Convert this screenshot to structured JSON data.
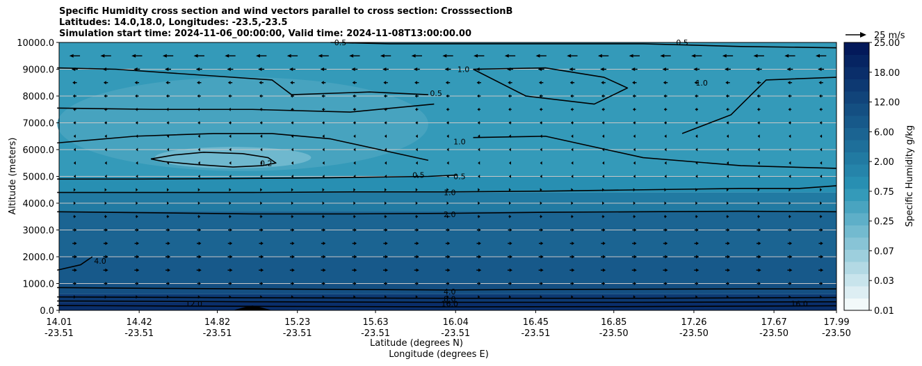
{
  "header": {
    "line1": "Specific Humidity cross section and wind vectors parallel to cross section: CrosssectionB",
    "line2": "Latitudes: 14.0,18.0, Longitudes: -23.5,-23.5",
    "line3": "Simulation start time: 2024-11-06_00:00:00, Valid time: 2024-11-08T13:00:00.00"
  },
  "quiver_key": {
    "label": "25 m/s"
  },
  "chart_data": {
    "type": "heatmap",
    "ylabel": "Altitude (meters)",
    "xlabel_lat": "Latitude (degrees N)",
    "xlabel_lon": "Longitude (degrees E)",
    "ylim": [
      0,
      10000
    ],
    "grid": "horizontal",
    "y_ticks": [
      "0.0",
      "1000.0",
      "2000.0",
      "3000.0",
      "4000.0",
      "5000.0",
      "6000.0",
      "7000.0",
      "8000.0",
      "9000.0",
      "10000.0"
    ],
    "x_ticks": [
      {
        "lat": "14.01",
        "lon": "-23.51"
      },
      {
        "lat": "14.42",
        "lon": "-23.51"
      },
      {
        "lat": "14.82",
        "lon": "-23.51"
      },
      {
        "lat": "15.23",
        "lon": "-23.51"
      },
      {
        "lat": "15.63",
        "lon": "-23.51"
      },
      {
        "lat": "16.04",
        "lon": "-23.51"
      },
      {
        "lat": "16.45",
        "lon": "-23.51"
      },
      {
        "lat": "16.85",
        "lon": "-23.50"
      },
      {
        "lat": "17.26",
        "lon": "-23.50"
      },
      {
        "lat": "17.67",
        "lon": "-23.50"
      },
      {
        "lat": "17.99",
        "lon": "-23.50"
      }
    ],
    "colorbar": {
      "label": "Specific Humidity g/kg",
      "levels": [
        0.01,
        0.02,
        0.03,
        0.05,
        0.07,
        0.1,
        0.15,
        0.25,
        0.35,
        0.5,
        0.75,
        1.0,
        1.5,
        2.0,
        3.0,
        4.0,
        6.0,
        8.0,
        12.0,
        15.0,
        18.0,
        21.0,
        25.0
      ],
      "tick_labels": [
        "0.01",
        "0.03",
        "0.07",
        "0.25",
        "0.75",
        "2.00",
        "6.00",
        "12.00",
        "18.00",
        "25.00"
      ],
      "color_low": "#f2f9fa",
      "color_mid": "#2a95b6",
      "color_high": "#03195a"
    },
    "humidity_bands": [
      {
        "from_m": 0,
        "to_m": 300,
        "value_gkg": 17.0
      },
      {
        "from_m": 300,
        "to_m": 600,
        "value_gkg": 12.0
      },
      {
        "from_m": 600,
        "to_m": 1000,
        "value_gkg": 7.0
      },
      {
        "from_m": 1000,
        "to_m": 2000,
        "value_gkg": 5.0
      },
      {
        "from_m": 2000,
        "to_m": 3700,
        "value_gkg": 3.0
      },
      {
        "from_m": 3700,
        "to_m": 4400,
        "value_gkg": 1.5
      },
      {
        "from_m": 4400,
        "to_m": 5000,
        "value_gkg": 0.8
      },
      {
        "from_m": 5000,
        "to_m": 10000,
        "value_gkg": 0.6
      }
    ],
    "dry_patches": [
      {
        "lat_from": 14.0,
        "lat_to": 15.9,
        "alt_from_m": 5200,
        "alt_to_m": 8700,
        "value_gkg": 0.35
      },
      {
        "lat_from": 14.5,
        "lat_to": 15.3,
        "alt_from_m": 5300,
        "alt_to_m": 6100,
        "value_gkg": 0.2
      }
    ],
    "contours": [
      {
        "level": "0.2",
        "lat": [
          14.48,
          14.6,
          14.75,
          14.95,
          15.08,
          15.12,
          15.05,
          14.9,
          14.7,
          14.55,
          14.48
        ],
        "alt_m": [
          5650,
          5800,
          5900,
          5850,
          5700,
          5500,
          5400,
          5350,
          5450,
          5550,
          5650
        ]
      },
      {
        "level": "0.5",
        "lat": [
          14.0,
          14.4,
          14.9,
          15.4,
          15.9,
          16.05
        ],
        "alt_m": [
          4900,
          4900,
          4920,
          4950,
          5000,
          5050
        ]
      },
      {
        "level": "0.5",
        "lat": [
          14.0,
          14.4,
          14.8,
          15.1,
          15.4,
          15.9
        ],
        "alt_m": [
          6250,
          6500,
          6600,
          6600,
          6400,
          5600
        ]
      },
      {
        "level": "0.5",
        "lat": [
          14.0,
          14.5,
          15.0,
          15.5,
          15.93
        ],
        "alt_m": [
          7550,
          7500,
          7500,
          7400,
          7700
        ]
      },
      {
        "level": "0.5",
        "lat": [
          14.0,
          14.3,
          14.8,
          15.1,
          15.2,
          15.6,
          15.9
        ],
        "alt_m": [
          9050,
          9000,
          8750,
          8600,
          8050,
          8150,
          8050
        ]
      },
      {
        "level": "0.5",
        "lat": [
          15.4,
          15.7,
          16.0,
          16.5,
          17.0,
          17.5,
          17.99
        ],
        "alt_m": [
          10000,
          9950,
          9950,
          9950,
          9950,
          9850,
          9800
        ]
      },
      {
        "level": "1.0",
        "lat": [
          14.0,
          14.5,
          15.0,
          15.5,
          16.0,
          16.5,
          17.0,
          17.5,
          17.8,
          17.99
        ],
        "alt_m": [
          4400,
          4400,
          4400,
          4420,
          4420,
          4450,
          4500,
          4550,
          4550,
          4650
        ]
      },
      {
        "level": "1.0",
        "lat": [
          16.13,
          16.5,
          17.0,
          17.5,
          17.99
        ],
        "alt_m": [
          6450,
          6500,
          5700,
          5400,
          5300
        ]
      },
      {
        "level": "1.0",
        "lat": [
          16.13,
          16.5,
          16.8,
          16.92,
          16.75,
          16.4,
          16.13
        ],
        "alt_m": [
          9000,
          9050,
          8700,
          8300,
          7700,
          8000,
          9000
        ]
      },
      {
        "level": "1.0",
        "lat": [
          17.2,
          17.45,
          17.63,
          17.99
        ],
        "alt_m": [
          6600,
          7300,
          8600,
          8700
        ]
      },
      {
        "level": "2.0",
        "lat": [
          14.0,
          14.5,
          15.0,
          15.5,
          16.0,
          16.5,
          17.0,
          17.5,
          17.99
        ],
        "alt_m": [
          3680,
          3640,
          3600,
          3600,
          3620,
          3660,
          3680,
          3700,
          3680
        ]
      },
      {
        "level": "4.0",
        "lat": [
          14.0,
          14.12,
          14.18
        ],
        "alt_m": [
          1500,
          1700,
          2000
        ]
      },
      {
        "level": "4.0",
        "lat": [
          14.0,
          14.5,
          15.0,
          15.5,
          16.0,
          16.5,
          17.0,
          17.5,
          17.99
        ],
        "alt_m": [
          850,
          820,
          800,
          780,
          760,
          780,
          790,
          800,
          800
        ]
      },
      {
        "level": "8.0",
        "lat": [
          14.0,
          15.0,
          16.0,
          17.0,
          17.99
        ],
        "alt_m": [
          500,
          470,
          450,
          450,
          480
        ]
      },
      {
        "level": "12.0",
        "lat": [
          14.0,
          15.0,
          16.0,
          17.0,
          17.99
        ],
        "alt_m": [
          350,
          320,
          300,
          300,
          320
        ]
      },
      {
        "level": "16.0",
        "lat": [
          14.0,
          15.0,
          16.0,
          17.0,
          17.99
        ],
        "alt_m": [
          180,
          150,
          130,
          140,
          170
        ]
      }
    ],
    "contour_labels": [
      {
        "text": "0.2",
        "lat": 15.07,
        "alt_m": 5500
      },
      {
        "text": "0.5",
        "lat": 15.45,
        "alt_m": 10000
      },
      {
        "text": "0.5",
        "lat": 15.94,
        "alt_m": 8100
      },
      {
        "text": "0.5",
        "lat": 15.85,
        "alt_m": 5050
      },
      {
        "text": "0.5",
        "lat": 16.06,
        "alt_m": 5000
      },
      {
        "text": "0.5",
        "lat": 17.2,
        "alt_m": 10000
      },
      {
        "text": "1.0",
        "lat": 16.08,
        "alt_m": 9000
      },
      {
        "text": "1.0",
        "lat": 16.06,
        "alt_m": 6300
      },
      {
        "text": "1.0",
        "lat": 17.3,
        "alt_m": 8500
      },
      {
        "text": "1.0",
        "lat": 16.01,
        "alt_m": 4400
      },
      {
        "text": "2.0",
        "lat": 16.01,
        "alt_m": 3580
      },
      {
        "text": "4.0",
        "lat": 14.22,
        "alt_m": 1850
      },
      {
        "text": "4.0",
        "lat": 16.01,
        "alt_m": 700
      },
      {
        "text": "8.0",
        "lat": 16.01,
        "alt_m": 430
      },
      {
        "text": "12.0",
        "lat": 14.7,
        "alt_m": 250
      },
      {
        "text": "16.0",
        "lat": 16.01,
        "alt_m": 250
      },
      {
        "text": "16.0",
        "lat": 17.8,
        "alt_m": 250
      }
    ],
    "terrain": {
      "lat": [
        14.9,
        14.96,
        15.0,
        15.04,
        15.1
      ],
      "alt_m": [
        0,
        120,
        180,
        120,
        0
      ]
    },
    "wind_vectors": [
      {
        "alt_m": 9500,
        "u_ms": -12.0
      },
      {
        "alt_m": 9000,
        "u_ms": -7.0
      },
      {
        "alt_m": 8500,
        "u_ms": -5.0
      },
      {
        "alt_m": 8000,
        "u_ms": -4.0
      },
      {
        "alt_m": 7500,
        "u_ms": -3.5
      },
      {
        "alt_m": 7000,
        "u_ms": -3.0
      },
      {
        "alt_m": 6500,
        "u_ms": -2.5
      },
      {
        "alt_m": 6000,
        "u_ms": -1.0
      },
      {
        "alt_m": 5500,
        "u_ms": -0.5
      },
      {
        "alt_m": 5000,
        "u_ms": -0.5
      },
      {
        "alt_m": 4500,
        "u_ms": 1.0
      },
      {
        "alt_m": 4000,
        "u_ms": 2.0
      },
      {
        "alt_m": 3500,
        "u_ms": 3.0
      },
      {
        "alt_m": 3000,
        "u_ms": 4.5
      },
      {
        "alt_m": 2500,
        "u_ms": 5.0
      },
      {
        "alt_m": 2000,
        "u_ms": 5.5
      },
      {
        "alt_m": 1500,
        "u_ms": 5.5
      },
      {
        "alt_m": 1000,
        "u_ms": 4.0
      },
      {
        "alt_m": 500,
        "u_ms": 2.5
      }
    ],
    "wind_reference_ms": 25
  }
}
